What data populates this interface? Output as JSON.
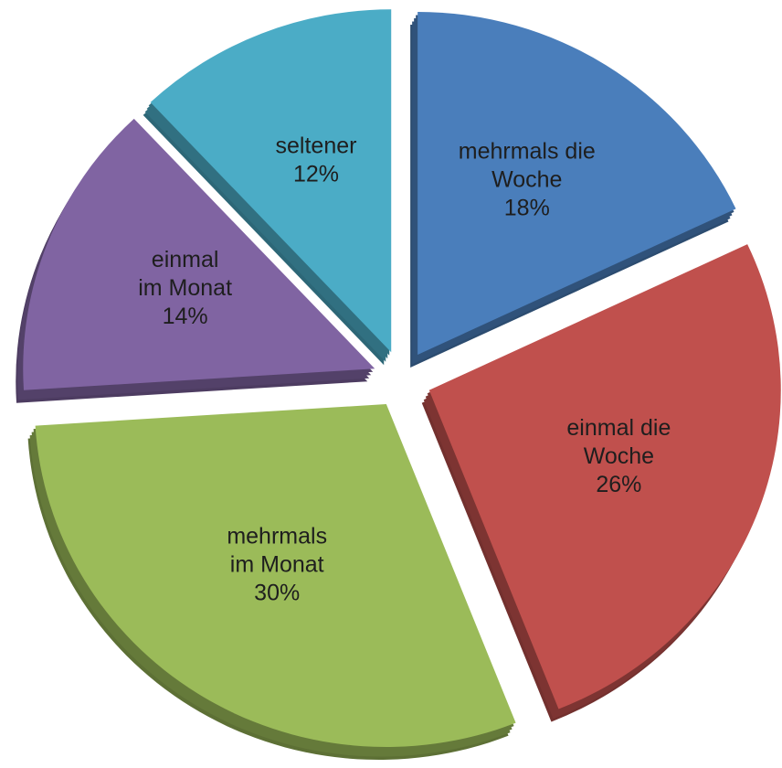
{
  "chart_data": {
    "type": "pie",
    "categories": [
      "mehrmals die\nWoche",
      "einmal die\nWoche",
      "mehrmals\nim Monat",
      "einmal\nim Monat",
      "seltener"
    ],
    "values": [
      18,
      26,
      30,
      14,
      12
    ],
    "value_labels": [
      "18%",
      "26%",
      "30%",
      "14%",
      "12%"
    ],
    "colors": [
      "#4a7ebb",
      "#c0504d",
      "#9bbb59",
      "#8064a2",
      "#4bacc6"
    ]
  }
}
